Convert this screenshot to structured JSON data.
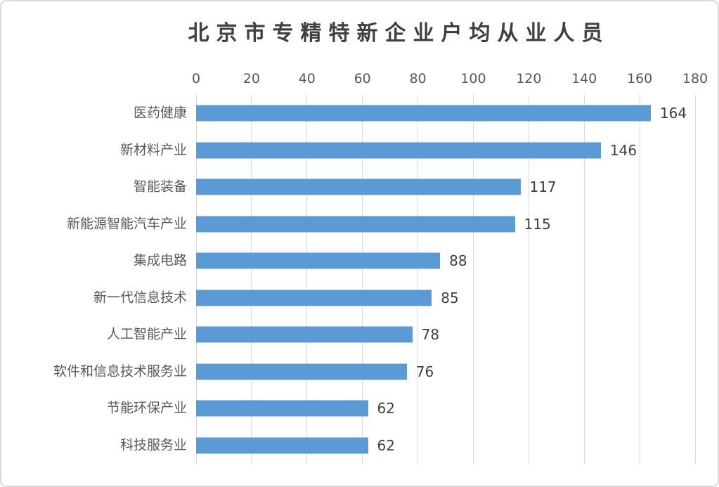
{
  "chart_data": {
    "type": "bar",
    "orientation": "horizontal",
    "title": "北京市专精特新企业户均从业人员",
    "categories": [
      "医药健康",
      "新材料产业",
      "智能装备",
      "新能源智能汽车产业",
      "集成电路",
      "新一代信息技术",
      "人工智能产业",
      "软件和信息技术服务业",
      "节能环保产业",
      "科技服务业"
    ],
    "values": [
      164,
      146,
      117,
      115,
      88,
      85,
      78,
      76,
      62,
      62
    ],
    "data_labels": [
      164,
      146,
      117,
      115,
      88,
      85,
      78,
      76,
      62,
      62
    ],
    "xlabel": "",
    "ylabel": "",
    "xlim": [
      0,
      180
    ],
    "x_ticks": [
      0,
      20,
      40,
      60,
      80,
      100,
      120,
      140,
      160,
      180
    ],
    "grid": "vertical-only",
    "legend": "none",
    "colors": {
      "bar": "#5b9bd5",
      "gridline": "#d9d9d9",
      "axis_text": "#595959",
      "category_text": "#595959",
      "value_text": "#404040",
      "title_text": "#404040",
      "border": "#d9d9d9",
      "background": "#ffffff"
    }
  }
}
